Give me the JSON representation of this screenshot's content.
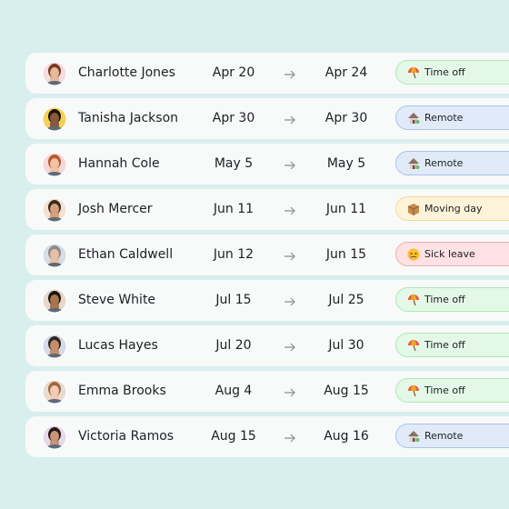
{
  "rows": [
    {
      "name": "Charlotte Jones",
      "start": "Apr 20",
      "end": "Apr 24",
      "status": "Time off",
      "color": "#e4f8e7",
      "border": "#aee8b9"
    },
    {
      "name": "Tanisha Jackson",
      "start": "Apr 30",
      "end": "Apr 30",
      "status": "Remote",
      "color": "#e1eaf8",
      "border": "#aac2e9"
    },
    {
      "name": "Hannah Cole",
      "start": "May 5",
      "end": "May 5",
      "status": "Remote",
      "color": "#e1eaf8",
      "border": "#aac2e9"
    },
    {
      "name": "Josh Mercer",
      "start": "Jun 11",
      "end": "Jun 11",
      "status": "Moving day",
      "color": "#fdf3d9",
      "border": "#f4d993"
    },
    {
      "name": "Ethan Caldwell",
      "start": "Jun 12",
      "end": "Jun 15",
      "status": "Sick leave",
      "color": "#fde1e3",
      "border": "#f2a9b1"
    },
    {
      "name": "Steve White",
      "start": "Jul 15",
      "end": "Jul 25",
      "status": "Time off",
      "color": "#e4f8e7",
      "border": "#aee8b9"
    },
    {
      "name": "Lucas Hayes",
      "start": "Jul 20",
      "end": "Jul 30",
      "status": "Time off",
      "color": "#e4f8e7",
      "border": "#aee8b9"
    },
    {
      "name": "Emma Brooks",
      "start": "Aug 4",
      "end": "Aug 15",
      "status": "Time off",
      "color": "#e4f8e7",
      "border": "#aee8b9"
    },
    {
      "name": "Victoria Ramos",
      "start": "Aug 15",
      "end": "Aug 16",
      "status": "Remote",
      "color": "#e1eaf8",
      "border": "#aac2e9"
    }
  ]
}
